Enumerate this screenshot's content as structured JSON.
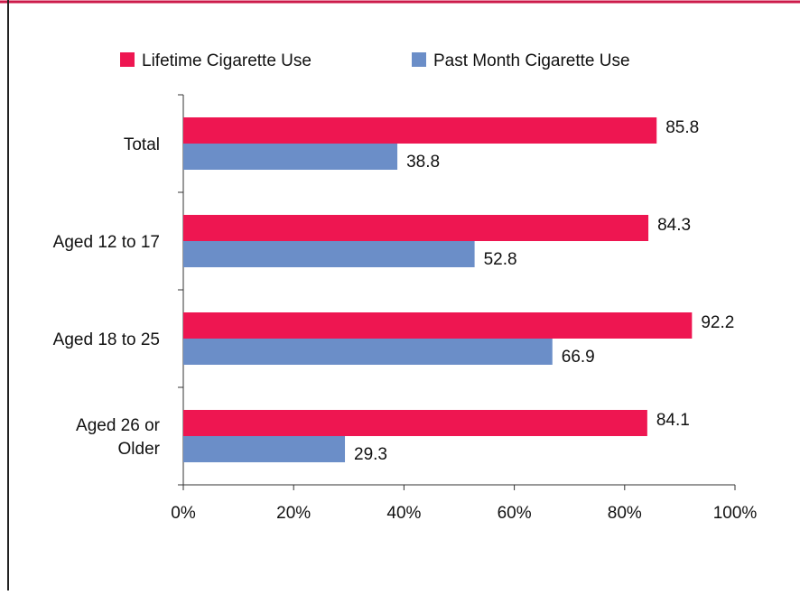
{
  "chart_data": {
    "type": "bar",
    "orientation": "horizontal",
    "categories": [
      "Total",
      "Aged 12 to 17",
      "Aged 18 to 25",
      "Aged 26 or Older"
    ],
    "series": [
      {
        "name": "Lifetime Cigarette Use",
        "color": "#ee1651",
        "values": [
          85.8,
          84.3,
          92.2,
          84.1
        ]
      },
      {
        "name": "Past Month Cigarette Use",
        "color": "#6b8ec8",
        "values": [
          38.8,
          52.8,
          66.9,
          29.3
        ]
      }
    ],
    "xlim": [
      0,
      100
    ],
    "x_ticks": [
      0,
      20,
      40,
      60,
      80,
      100
    ],
    "x_tick_labels": [
      "0%",
      "20%",
      "40%",
      "60%",
      "80%",
      "100%"
    ],
    "title": "",
    "xlabel": "",
    "ylabel": "",
    "grid": false,
    "legend_position": "top",
    "frame_color": "#cc1a4a"
  }
}
